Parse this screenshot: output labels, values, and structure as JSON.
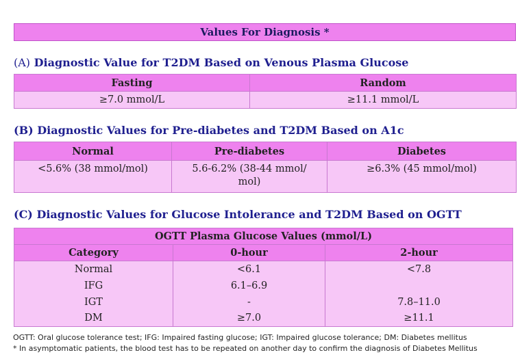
{
  "title": "Values  For Diagnosis *",
  "sections": {
    "a": {
      "label": "(A)",
      "heading": "Diagnostic Value for T2DM Based on Venous Plasma Glucose",
      "headers": [
        "Fasting",
        "Random"
      ],
      "values": [
        "≥7.0 mmol/L",
        "≥11.1 mmol/L"
      ]
    },
    "b": {
      "label": "(B)",
      "heading": "Diagnostic Values for Pre-diabetes and T2DM Based on A1c",
      "headers": [
        "Normal",
        "Pre-diabetes",
        "Diabetes"
      ],
      "values": [
        "<5.6% (38 mmol/mol)",
        "5.6-6.2% (38-44 mmol/ mol)",
        "≥6.3% (45 mmol/mol)"
      ]
    },
    "c": {
      "label": "(C)",
      "heading": "Diagnostic Values for Glucose Intolerance and T2DM Based on OGTT",
      "group_header": "OGTT Plasma Glucose Values (mmol/L)",
      "headers": [
        "Category",
        "0-hour",
        "2-hour"
      ],
      "rows": [
        [
          "Normal",
          "<6.1",
          "<7.8"
        ],
        [
          "IFG",
          "6.1–6.9",
          ""
        ],
        [
          "IGT",
          "-",
          "7.8–11.0"
        ],
        [
          "DM",
          "≥7.0",
          "≥11.1"
        ]
      ]
    }
  },
  "footnotes": [
    "OGTT: Oral glucose tolerance test; IFG: Impaired fasting glucose; IGT: Impaired glucose tolerance; DM: Diabetes mellitus",
    "* In asymptomatic patients, the blood test has to be repeated on another day to confirm the diagnosis of  Diabetes Mellitus"
  ]
}
